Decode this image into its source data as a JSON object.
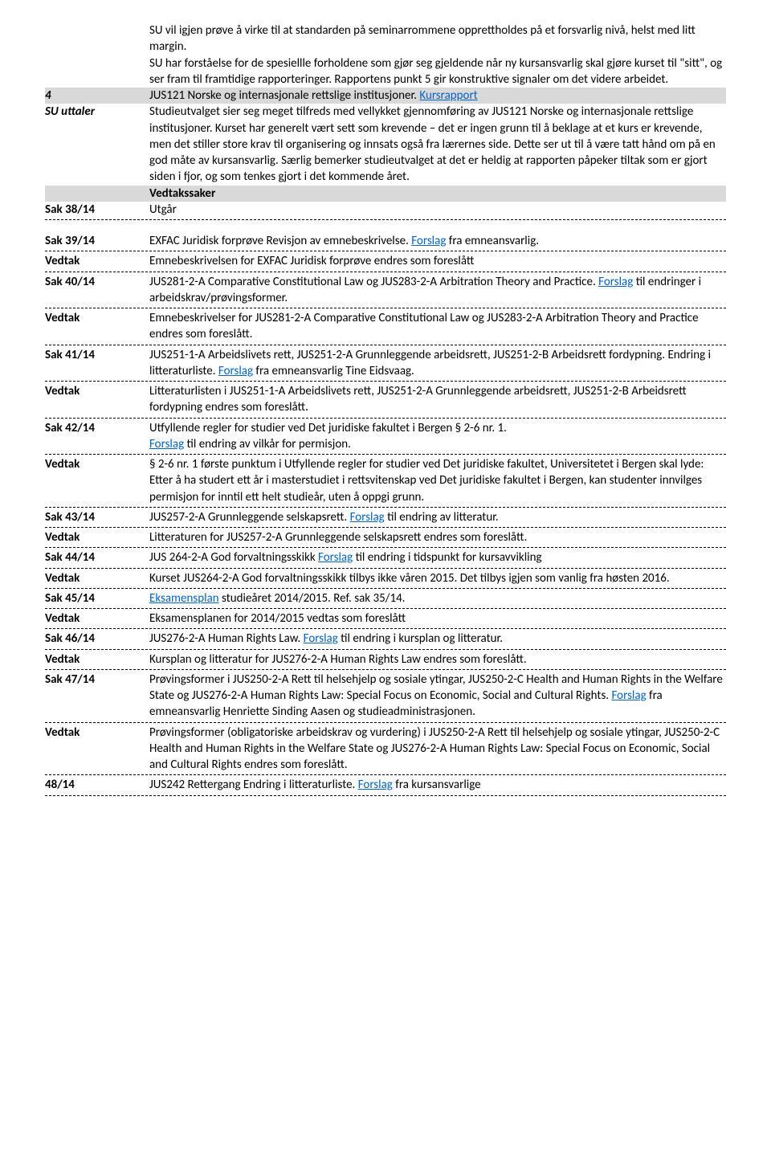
{
  "intro": {
    "p1": "SU vil igjen prøve å virke til at standarden på seminarrommene opprettholdes på et forsvarlig nivå, helst med litt margin.",
    "p2": "SU har forståelse for de spesiellle forholdene som gjør seg gjeldende når ny kursansvarlig skal gjøre kurset til \"sitt\", og ser fram til framtidige rapporteringer. Rapportens punkt 5 gir konstruktive signaler om det videre arbeidet."
  },
  "item4": {
    "num": "4",
    "su": "SU uttaler",
    "title_pre": "JUS121 Norske og internasjonale rettslige institusjoner. ",
    "title_link": "Kursrapport",
    "body": "Studieutvalget sier seg meget tilfreds med vellykket gjennomføring av JUS121 Norske og internasjonale rettslige institusjoner. Kurset har generelt vært sett som krevende – det er ingen grunn til å beklage at et kurs er krevende, men det stiller store krav til organisering og innsats også fra lærernes side. Dette ser ut til å være tatt hånd om på en god måte av kursansvarlig. Særlig bemerker studieutvalget at det er heldig at rapporten påpeker tiltak som er gjort siden i fjor, og som tenkes gjort i det kommende året."
  },
  "vedtakssaker": "Vedtakssaker",
  "sak38": {
    "id": "Sak 38/14",
    "body": "Utgår"
  },
  "vedtak_label": "Vedtak",
  "forslag": "Forslag",
  "sak39": {
    "id": "Sak 39/14",
    "t1": "EXFAC Juridisk forprøve Revisjon av emnebeskrivelse. ",
    "t2": " fra emneansvarlig.",
    "v": "Emnebeskrivelsen for EXFAC Juridisk forprøve endres som foreslått"
  },
  "sak40": {
    "id": "Sak 40/14",
    "t1": "JUS281-2-A Comparative Constitutional Law og JUS283-2-A Arbitration Theory and Practice. ",
    "t2": " til endringer i arbeidskrav/prøvingsformer.",
    "v": "Emnebeskrivelser for JUS281-2-A Comparative Constitutional Law og JUS283-2-A Arbitration Theory and Practice endres som foreslått."
  },
  "sak41": {
    "id": "Sak 41/14",
    "t1": "JUS251-1-A Arbeidslivets rett, JUS251-2-A Grunnleggende arbeidsrett, JUS251-2-B Arbeidsrett fordypning. Endring i litteraturliste. ",
    "t2": " fra emneansvarlig Tine Eidsvaag.",
    "v": "Litteraturlisten i JUS251-1-A Arbeidslivets rett, JUS251-2-A Grunnleggende arbeidsrett, JUS251-2-B Arbeidsrett fordypning endres som foreslått."
  },
  "sak42": {
    "id": "Sak 42/14",
    "t1": "Utfyllende regler for studier ved Det juridiske fakultet i Bergen § 2-6 nr. 1. ",
    "t2": " til endring av vilkår for permisjon.",
    "v": "§ 2-6 nr. 1 første punktum i Utfyllende regler for studier ved Det juridiske fakultet, Universitetet i Bergen skal lyde:\nEtter å ha studert ett år i masterstudiet i rettsvitenskap ved Det juridiske fakultet i Bergen, kan studenter innvilges permisjon for inntil ett helt studieår, uten å oppgi grunn."
  },
  "sak43": {
    "id": "Sak 43/14",
    "t1": "JUS257-2-A Grunnleggende selskapsrett. ",
    "t2": " til endring av litteratur.",
    "v": "Litteraturen for JUS257-2-A Grunnleggende selskapsrett endres som foreslått."
  },
  "sak44": {
    "id": "Sak 44/14",
    "t1": "JUS 264-2-A God forvaltningsskikk ",
    "t2": " til endring i tidspunkt for kursavvikling",
    "v": "Kurset JUS264-2-A God forvaltningsskikk tilbys ikke våren 2015. Det tilbys igjen som vanlig fra høsten 2016."
  },
  "sak45": {
    "id": "Sak 45/14",
    "link": "Eksamensplan",
    "t2": " studieåret 2014/2015. Ref. sak 35/14.",
    "v": "Eksamensplanen for 2014/2015 vedtas som foreslått"
  },
  "sak46": {
    "id": "Sak 46/14",
    "t1": "JUS276-2-A Human Rights Law. ",
    "t2": " til endring i kursplan og litteratur.",
    "v": "Kursplan og litteratur for JUS276-2-A Human Rights Law endres som foreslått."
  },
  "sak47": {
    "id": "Sak 47/14",
    "t1": "Prøvingsformer i JUS250-2-A Rett til helsehjelp og sosiale ytingar, JUS250-2-C Health and Human Rights in the Welfare State og JUS276-2-A Human Rights Law: Special Focus on Economic, Social and Cultural Rights. ",
    "t2": " fra emneansvarlig Henriette Sinding Aasen og studieadministrasjonen.",
    "v": "Prøvingsformer (obligatoriske arbeidskrav og vurdering) i JUS250-2-A Rett til helsehjelp og sosiale ytingar, JUS250-2-C Health and Human Rights in the Welfare State og JUS276-2-A Human Rights Law: Special Focus on Economic, Social and Cultural Rights endres som foreslått."
  },
  "sak48": {
    "id": "48/14",
    "t1": "JUS242 Rettergang Endring i litteraturliste. ",
    "t2": " fra kursansvarlige"
  }
}
